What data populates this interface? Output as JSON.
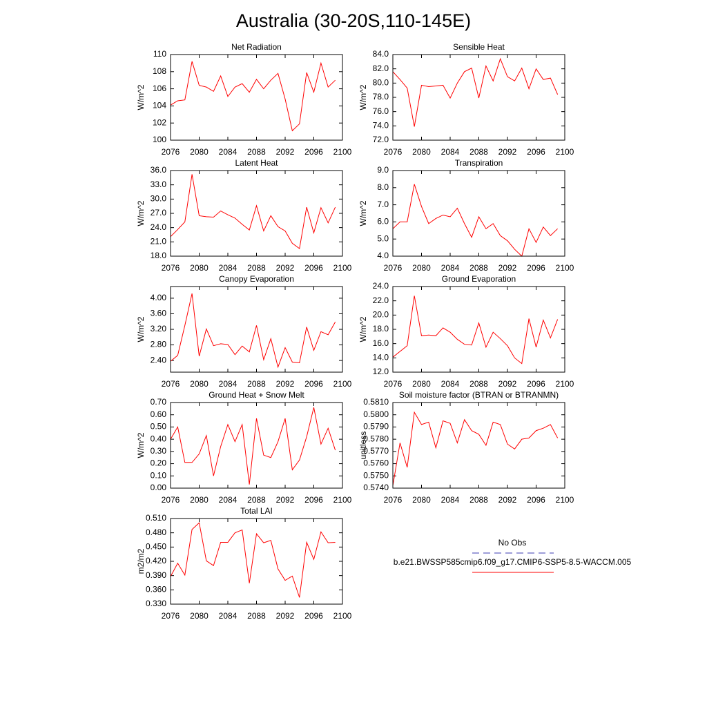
{
  "title": "Australia (30-20S,110-145E)",
  "legend": [
    {
      "name": "No Obs",
      "color": "#3b3bb0",
      "dashed": true
    },
    {
      "name": "b.e21.BWSSP585cmip6.f09_g17.CMIP6-SSP5-8.5-WACCM.005",
      "color": "#ff0000",
      "dashed": false
    }
  ],
  "chart_data": [
    {
      "type": "line",
      "title": "Net Radiation",
      "ylabel": "W/m^2",
      "color": "#ff0000",
      "x": [
        2076,
        2077,
        2078,
        2079,
        2080,
        2081,
        2082,
        2083,
        2084,
        2085,
        2086,
        2087,
        2088,
        2089,
        2090,
        2091,
        2092,
        2093,
        2094,
        2095,
        2096,
        2097,
        2098,
        2099
      ],
      "values": [
        104.1,
        104.6,
        104.7,
        109.2,
        106.4,
        106.2,
        105.7,
        107.5,
        105.1,
        106.2,
        106.6,
        105.6,
        107.1,
        106.0,
        107.0,
        107.8,
        104.8,
        101.1,
        101.9,
        107.9,
        105.6,
        109.0,
        106.2,
        107.0
      ],
      "xlim": [
        2076,
        2100
      ],
      "xticks": [
        2076,
        2080,
        2084,
        2088,
        2092,
        2096,
        2100
      ],
      "ylim": [
        100,
        110
      ],
      "yticks": [
        100,
        102,
        104,
        106,
        108,
        110
      ]
    },
    {
      "type": "line",
      "title": "Sensible Heat",
      "ylabel": "W/m^2",
      "color": "#ff0000",
      "x": [
        2076,
        2077,
        2078,
        2079,
        2080,
        2081,
        2082,
        2083,
        2084,
        2085,
        2086,
        2087,
        2088,
        2089,
        2090,
        2091,
        2092,
        2093,
        2094,
        2095,
        2096,
        2097,
        2098,
        2099
      ],
      "values": [
        81.6,
        80.5,
        79.3,
        73.9,
        79.7,
        79.5,
        79.6,
        79.7,
        77.9,
        80.0,
        81.6,
        82.1,
        77.9,
        82.4,
        80.3,
        83.4,
        80.9,
        80.3,
        82.1,
        79.2,
        82.0,
        80.5,
        80.7,
        78.4
      ],
      "xlim": [
        2076,
        2100
      ],
      "xticks": [
        2076,
        2080,
        2084,
        2088,
        2092,
        2096,
        2100
      ],
      "ylim": [
        72,
        84
      ],
      "yticks": [
        {
          "value": 72,
          "label": "72.0"
        },
        {
          "value": 74,
          "label": "74.0"
        },
        {
          "value": 76,
          "label": "76.0"
        },
        {
          "value": 78,
          "label": "78.0"
        },
        {
          "value": 80,
          "label": "80.0"
        },
        {
          "value": 82,
          "label": "82.0"
        },
        {
          "value": 84,
          "label": "84.0"
        }
      ]
    },
    {
      "type": "line",
      "title": "Latent Heat",
      "ylabel": "W/m^2",
      "color": "#ff0000",
      "x": [
        2076,
        2077,
        2078,
        2079,
        2080,
        2081,
        2082,
        2083,
        2084,
        2085,
        2086,
        2087,
        2088,
        2089,
        2090,
        2091,
        2092,
        2093,
        2094,
        2095,
        2096,
        2097,
        2098,
        2099
      ],
      "values": [
        22.1,
        23.6,
        25.2,
        35.2,
        26.5,
        26.3,
        26.2,
        27.5,
        26.7,
        26.0,
        24.7,
        23.5,
        28.6,
        23.3,
        26.5,
        24.2,
        23.3,
        20.7,
        19.6,
        28.3,
        22.9,
        28.2,
        25.0,
        28.3
      ],
      "xlim": [
        2076,
        2100
      ],
      "xticks": [
        2076,
        2080,
        2084,
        2088,
        2092,
        2096,
        2100
      ],
      "ylim": [
        18,
        36
      ],
      "yticks": [
        {
          "value": 18,
          "label": "18.0"
        },
        {
          "value": 21,
          "label": "21.0"
        },
        {
          "value": 24,
          "label": "24.0"
        },
        {
          "value": 27,
          "label": "27.0"
        },
        {
          "value": 30,
          "label": "30.0"
        },
        {
          "value": 33,
          "label": "33.0"
        },
        {
          "value": 36,
          "label": "36.0"
        }
      ]
    },
    {
      "type": "line",
      "title": "Transpiration",
      "ylabel": "W/m^2",
      "color": "#ff0000",
      "x": [
        2076,
        2077,
        2078,
        2079,
        2080,
        2081,
        2082,
        2083,
        2084,
        2085,
        2086,
        2087,
        2088,
        2089,
        2090,
        2091,
        2092,
        2093,
        2094,
        2095,
        2096,
        2097,
        2098,
        2099
      ],
      "values": [
        5.6,
        6.0,
        6.0,
        8.2,
        6.9,
        5.9,
        6.2,
        6.4,
        6.3,
        6.8,
        5.9,
        5.1,
        6.3,
        5.6,
        5.9,
        5.2,
        4.9,
        4.4,
        4.0,
        5.6,
        4.8,
        5.7,
        5.2,
        5.6
      ],
      "xlim": [
        2076,
        2100
      ],
      "xticks": [
        2076,
        2080,
        2084,
        2088,
        2092,
        2096,
        2100
      ],
      "ylim": [
        4,
        9
      ],
      "yticks": [
        {
          "value": 4,
          "label": "4.0"
        },
        {
          "value": 5,
          "label": "5.0"
        },
        {
          "value": 6,
          "label": "6.0"
        },
        {
          "value": 7,
          "label": "7.0"
        },
        {
          "value": 8,
          "label": "8.0"
        },
        {
          "value": 9,
          "label": "9.0"
        }
      ]
    },
    {
      "type": "line",
      "title": "Canopy Evaporation",
      "ylabel": "W/m^2",
      "color": "#ff0000",
      "x": [
        2076,
        2077,
        2078,
        2079,
        2080,
        2081,
        2082,
        2083,
        2084,
        2085,
        2086,
        2087,
        2088,
        2089,
        2090,
        2091,
        2092,
        2093,
        2094,
        2095,
        2096,
        2097,
        2098,
        2099
      ],
      "values": [
        2.38,
        2.53,
        3.3,
        4.12,
        2.51,
        3.21,
        2.78,
        2.83,
        2.81,
        2.55,
        2.77,
        2.62,
        3.3,
        2.42,
        2.96,
        2.23,
        2.73,
        2.36,
        2.34,
        3.26,
        2.66,
        3.14,
        3.06,
        3.39
      ],
      "xlim": [
        2076,
        2100
      ],
      "xticks": [
        2076,
        2080,
        2084,
        2088,
        2092,
        2096,
        2100
      ],
      "ylim": [
        2.1,
        4.3
      ],
      "yticks": [
        {
          "value": 2.4,
          "label": "2.40"
        },
        {
          "value": 2.8,
          "label": "2.80"
        },
        {
          "value": 3.2,
          "label": "3.20"
        },
        {
          "value": 3.6,
          "label": "3.60"
        },
        {
          "value": 4,
          "label": "4.00"
        }
      ]
    },
    {
      "type": "line",
      "title": "Ground Evaporation",
      "ylabel": "W/m^2",
      "color": "#ff0000",
      "x": [
        2076,
        2077,
        2078,
        2079,
        2080,
        2081,
        2082,
        2083,
        2084,
        2085,
        2086,
        2087,
        2088,
        2089,
        2090,
        2091,
        2092,
        2093,
        2094,
        2095,
        2096,
        2097,
        2098,
        2099
      ],
      "values": [
        14.1,
        14.9,
        15.7,
        22.7,
        17.1,
        17.2,
        17.1,
        18.2,
        17.6,
        16.6,
        15.9,
        15.8,
        18.9,
        15.5,
        17.6,
        16.7,
        15.7,
        14.0,
        13.2,
        19.5,
        15.5,
        19.3,
        16.8,
        19.4
      ],
      "xlim": [
        2076,
        2100
      ],
      "xticks": [
        2076,
        2080,
        2084,
        2088,
        2092,
        2096,
        2100
      ],
      "ylim": [
        12,
        24
      ],
      "yticks": [
        {
          "value": 12,
          "label": "12.0"
        },
        {
          "value": 14,
          "label": "14.0"
        },
        {
          "value": 16,
          "label": "16.0"
        },
        {
          "value": 18,
          "label": "18.0"
        },
        {
          "value": 20,
          "label": "20.0"
        },
        {
          "value": 22,
          "label": "22.0"
        },
        {
          "value": 24,
          "label": "24.0"
        }
      ]
    },
    {
      "type": "line",
      "title": "Ground Heat + Snow Melt",
      "ylabel": "W/m^2",
      "color": "#ff0000",
      "x": [
        2076,
        2077,
        2078,
        2079,
        2080,
        2081,
        2082,
        2083,
        2084,
        2085,
        2086,
        2087,
        2088,
        2089,
        2090,
        2091,
        2092,
        2093,
        2094,
        2095,
        2096,
        2097,
        2098,
        2099
      ],
      "values": [
        0.4,
        0.5,
        0.21,
        0.21,
        0.28,
        0.43,
        0.1,
        0.34,
        0.52,
        0.38,
        0.52,
        0.03,
        0.57,
        0.27,
        0.25,
        0.38,
        0.57,
        0.15,
        0.23,
        0.42,
        0.66,
        0.36,
        0.49,
        0.31
      ],
      "xlim": [
        2076,
        2100
      ],
      "xticks": [
        2076,
        2080,
        2084,
        2088,
        2092,
        2096,
        2100
      ],
      "ylim": [
        0,
        0.7
      ],
      "yticks": [
        {
          "value": 0,
          "label": "0.00"
        },
        {
          "value": 0.1,
          "label": "0.10"
        },
        {
          "value": 0.2,
          "label": "0.20"
        },
        {
          "value": 0.3,
          "label": "0.30"
        },
        {
          "value": 0.4,
          "label": "0.40"
        },
        {
          "value": 0.5,
          "label": "0.50"
        },
        {
          "value": 0.6,
          "label": "0.60"
        },
        {
          "value": 0.7,
          "label": "0.70"
        }
      ]
    },
    {
      "type": "line",
      "title": "Soil moisture factor (BTRAN or BTRANMN)",
      "ylabel": "unitless",
      "color": "#ff0000",
      "x": [
        2076,
        2077,
        2078,
        2079,
        2080,
        2081,
        2082,
        2083,
        2084,
        2085,
        2086,
        2087,
        2088,
        2089,
        2090,
        2091,
        2092,
        2093,
        2094,
        2095,
        2096,
        2097,
        2098,
        2099
      ],
      "values": [
        0.5742,
        0.5777,
        0.5757,
        0.5802,
        0.5792,
        0.5794,
        0.5773,
        0.5795,
        0.5793,
        0.5777,
        0.5796,
        0.5787,
        0.5784,
        0.5775,
        0.5794,
        0.5792,
        0.5776,
        0.5772,
        0.578,
        0.5781,
        0.5787,
        0.5789,
        0.5792,
        0.5781
      ],
      "xlim": [
        2076,
        2100
      ],
      "xticks": [
        2076,
        2080,
        2084,
        2088,
        2092,
        2096,
        2100
      ],
      "ylim": [
        0.574,
        0.581
      ],
      "yticks": [
        {
          "value": 0.574,
          "label": "0.5740"
        },
        {
          "value": 0.575,
          "label": "0.5750"
        },
        {
          "value": 0.576,
          "label": "0.5760"
        },
        {
          "value": 0.577,
          "label": "0.5770"
        },
        {
          "value": 0.578,
          "label": "0.5780"
        },
        {
          "value": 0.579,
          "label": "0.5790"
        },
        {
          "value": 0.58,
          "label": "0.5800"
        },
        {
          "value": 0.581,
          "label": "0.5810"
        }
      ]
    },
    {
      "type": "line",
      "title": "Total LAI",
      "ylabel": "m2/m2",
      "color": "#ff0000",
      "x": [
        2076,
        2077,
        2078,
        2079,
        2080,
        2081,
        2082,
        2083,
        2084,
        2085,
        2086,
        2087,
        2088,
        2089,
        2090,
        2091,
        2092,
        2093,
        2094,
        2095,
        2096,
        2097,
        2098,
        2099
      ],
      "values": [
        0.388,
        0.416,
        0.391,
        0.487,
        0.501,
        0.421,
        0.411,
        0.46,
        0.46,
        0.48,
        0.486,
        0.374,
        0.478,
        0.459,
        0.464,
        0.404,
        0.38,
        0.389,
        0.344,
        0.46,
        0.424,
        0.482,
        0.459,
        0.46
      ],
      "xlim": [
        2076,
        2100
      ],
      "xticks": [
        2076,
        2080,
        2084,
        2088,
        2092,
        2096,
        2100
      ],
      "ylim": [
        0.33,
        0.51
      ],
      "yticks": [
        {
          "value": 0.33,
          "label": "0.330"
        },
        {
          "value": 0.36,
          "label": "0.360"
        },
        {
          "value": 0.39,
          "label": "0.390"
        },
        {
          "value": 0.42,
          "label": "0.420"
        },
        {
          "value": 0.45,
          "label": "0.450"
        },
        {
          "value": 0.48,
          "label": "0.480"
        },
        {
          "value": 0.51,
          "label": "0.510"
        }
      ]
    }
  ]
}
